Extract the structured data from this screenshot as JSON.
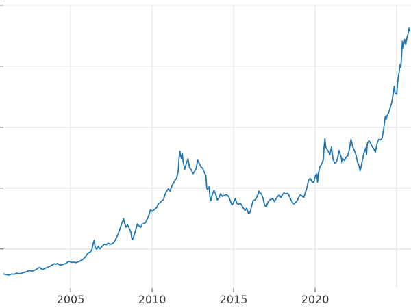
{
  "figure": {
    "background": "#ffffff"
  },
  "chart_data": {
    "type": "line",
    "title": "",
    "xlabel": "",
    "ylabel": "",
    "legend": null,
    "grid": true,
    "line_color": "#1f77b4",
    "line_width": 1.8,
    "grid_color": "#dcdcdc",
    "tick_color": "#555555",
    "tick_label_color": "#3a3a3a",
    "tick_label_font_size": 16,
    "x_tick_labels": [
      "2005",
      "2010",
      "2015",
      "2020"
    ],
    "x_tick_values": [
      2005,
      2010,
      2015,
      2020
    ],
    "x_grid_values": [
      2005,
      2010,
      2015,
      2020,
      2025
    ],
    "y_grid_values": [
      600,
      1400,
      2200,
      3000,
      3800
    ],
    "xlim": [
      2000.67,
      2025.88
    ],
    "ylim": [
      140,
      3780
    ],
    "points": [
      [
        2000.9,
        272
      ],
      [
        2001.0,
        266
      ],
      [
        2001.1,
        262
      ],
      [
        2001.2,
        258
      ],
      [
        2001.3,
        264
      ],
      [
        2001.4,
        272
      ],
      [
        2001.5,
        268
      ],
      [
        2001.6,
        274
      ],
      [
        2001.7,
        283
      ],
      [
        2001.8,
        278
      ],
      [
        2001.9,
        276
      ],
      [
        2002.0,
        282
      ],
      [
        2002.1,
        290
      ],
      [
        2002.2,
        296
      ],
      [
        2002.3,
        302
      ],
      [
        2002.4,
        312
      ],
      [
        2002.5,
        318
      ],
      [
        2002.6,
        310
      ],
      [
        2002.7,
        314
      ],
      [
        2002.8,
        322
      ],
      [
        2002.9,
        332
      ],
      [
        2003.0,
        348
      ],
      [
        2003.1,
        358
      ],
      [
        2003.2,
        340
      ],
      [
        2003.3,
        330
      ],
      [
        2003.4,
        344
      ],
      [
        2003.5,
        352
      ],
      [
        2003.6,
        360
      ],
      [
        2003.7,
        370
      ],
      [
        2003.8,
        382
      ],
      [
        2003.9,
        392
      ],
      [
        2004.0,
        408
      ],
      [
        2004.1,
        400
      ],
      [
        2004.2,
        412
      ],
      [
        2004.3,
        394
      ],
      [
        2004.4,
        388
      ],
      [
        2004.5,
        396
      ],
      [
        2004.6,
        402
      ],
      [
        2004.7,
        410
      ],
      [
        2004.8,
        424
      ],
      [
        2004.9,
        438
      ],
      [
        2005.0,
        428
      ],
      [
        2005.1,
        424
      ],
      [
        2005.2,
        430
      ],
      [
        2005.3,
        420
      ],
      [
        2005.4,
        428
      ],
      [
        2005.5,
        434
      ],
      [
        2005.6,
        444
      ],
      [
        2005.7,
        456
      ],
      [
        2005.8,
        472
      ],
      [
        2005.9,
        494
      ],
      [
        2006.0,
        528
      ],
      [
        2006.1,
        552
      ],
      [
        2006.2,
        558
      ],
      [
        2006.3,
        588
      ],
      [
        2006.4,
        684
      ],
      [
        2006.45,
        716
      ],
      [
        2006.5,
        628
      ],
      [
        2006.6,
        596
      ],
      [
        2006.7,
        632
      ],
      [
        2006.8,
        602
      ],
      [
        2006.9,
        628
      ],
      [
        2007.0,
        650
      ],
      [
        2007.1,
        664
      ],
      [
        2007.2,
        656
      ],
      [
        2007.3,
        678
      ],
      [
        2007.4,
        662
      ],
      [
        2007.5,
        666
      ],
      [
        2007.6,
        674
      ],
      [
        2007.7,
        700
      ],
      [
        2007.8,
        744
      ],
      [
        2007.9,
        788
      ],
      [
        2008.0,
        846
      ],
      [
        2008.1,
        912
      ],
      [
        2008.2,
        968
      ],
      [
        2008.25,
        1002
      ],
      [
        2008.3,
        944
      ],
      [
        2008.4,
        888
      ],
      [
        2008.5,
        916
      ],
      [
        2008.6,
        872
      ],
      [
        2008.7,
        820
      ],
      [
        2008.75,
        748
      ],
      [
        2008.8,
        724
      ],
      [
        2008.9,
        782
      ],
      [
        2009.0,
        856
      ],
      [
        2009.1,
        928
      ],
      [
        2009.2,
        902
      ],
      [
        2009.3,
        884
      ],
      [
        2009.4,
        928
      ],
      [
        2009.5,
        934
      ],
      [
        2009.6,
        948
      ],
      [
        2009.7,
        992
      ],
      [
        2009.8,
        1044
      ],
      [
        2009.9,
        1116
      ],
      [
        2010.0,
        1096
      ],
      [
        2010.1,
        1110
      ],
      [
        2010.2,
        1128
      ],
      [
        2010.3,
        1152
      ],
      [
        2010.4,
        1198
      ],
      [
        2010.5,
        1210
      ],
      [
        2010.6,
        1236
      ],
      [
        2010.7,
        1248
      ],
      [
        2010.8,
        1320
      ],
      [
        2010.9,
        1366
      ],
      [
        2011.0,
        1390
      ],
      [
        2011.1,
        1362
      ],
      [
        2011.2,
        1420
      ],
      [
        2011.3,
        1460
      ],
      [
        2011.4,
        1502
      ],
      [
        2011.5,
        1528
      ],
      [
        2011.6,
        1620
      ],
      [
        2011.65,
        1780
      ],
      [
        2011.7,
        1888
      ],
      [
        2011.75,
        1826
      ],
      [
        2011.8,
        1788
      ],
      [
        2011.85,
        1852
      ],
      [
        2011.9,
        1746
      ],
      [
        2012.0,
        1650
      ],
      [
        2012.1,
        1722
      ],
      [
        2012.2,
        1784
      ],
      [
        2012.3,
        1668
      ],
      [
        2012.4,
        1642
      ],
      [
        2012.5,
        1590
      ],
      [
        2012.6,
        1614
      ],
      [
        2012.7,
        1662
      ],
      [
        2012.8,
        1766
      ],
      [
        2012.9,
        1722
      ],
      [
        2013.0,
        1676
      ],
      [
        2013.1,
        1662
      ],
      [
        2013.2,
        1608
      ],
      [
        2013.3,
        1562
      ],
      [
        2013.35,
        1400
      ],
      [
        2013.4,
        1382
      ],
      [
        2013.5,
        1418
      ],
      [
        2013.55,
        1286
      ],
      [
        2013.6,
        1236
      ],
      [
        2013.7,
        1322
      ],
      [
        2013.8,
        1372
      ],
      [
        2013.9,
        1318
      ],
      [
        2014.0,
        1244
      ],
      [
        2014.1,
        1270
      ],
      [
        2014.2,
        1328
      ],
      [
        2014.3,
        1292
      ],
      [
        2014.4,
        1300
      ],
      [
        2014.5,
        1314
      ],
      [
        2014.6,
        1308
      ],
      [
        2014.7,
        1288
      ],
      [
        2014.8,
        1232
      ],
      [
        2014.9,
        1178
      ],
      [
        2015.0,
        1214
      ],
      [
        2015.1,
        1262
      ],
      [
        2015.2,
        1200
      ],
      [
        2015.3,
        1184
      ],
      [
        2015.4,
        1204
      ],
      [
        2015.5,
        1174
      ],
      [
        2015.6,
        1134
      ],
      [
        2015.7,
        1104
      ],
      [
        2015.8,
        1138
      ],
      [
        2015.9,
        1072
      ],
      [
        2016.0,
        1078
      ],
      [
        2016.1,
        1158
      ],
      [
        2016.2,
        1238
      ],
      [
        2016.3,
        1242
      ],
      [
        2016.4,
        1272
      ],
      [
        2016.5,
        1322
      ],
      [
        2016.55,
        1360
      ],
      [
        2016.6,
        1336
      ],
      [
        2016.7,
        1326
      ],
      [
        2016.8,
        1268
      ],
      [
        2016.9,
        1178
      ],
      [
        2017.0,
        1152
      ],
      [
        2017.1,
        1210
      ],
      [
        2017.2,
        1244
      ],
      [
        2017.3,
        1252
      ],
      [
        2017.4,
        1262
      ],
      [
        2017.5,
        1224
      ],
      [
        2017.6,
        1260
      ],
      [
        2017.7,
        1292
      ],
      [
        2017.8,
        1308
      ],
      [
        2017.9,
        1276
      ],
      [
        2018.0,
        1318
      ],
      [
        2018.1,
        1336
      ],
      [
        2018.2,
        1324
      ],
      [
        2018.3,
        1332
      ],
      [
        2018.4,
        1302
      ],
      [
        2018.5,
        1254
      ],
      [
        2018.6,
        1212
      ],
      [
        2018.7,
        1192
      ],
      [
        2018.8,
        1214
      ],
      [
        2018.9,
        1236
      ],
      [
        2019.0,
        1284
      ],
      [
        2019.1,
        1312
      ],
      [
        2019.2,
        1294
      ],
      [
        2019.3,
        1276
      ],
      [
        2019.4,
        1342
      ],
      [
        2019.5,
        1410
      ],
      [
        2019.6,
        1506
      ],
      [
        2019.7,
        1528
      ],
      [
        2019.8,
        1488
      ],
      [
        2019.9,
        1472
      ],
      [
        2020.0,
        1552
      ],
      [
        2020.1,
        1586
      ],
      [
        2020.15,
        1476
      ],
      [
        2020.2,
        1592
      ],
      [
        2020.3,
        1684
      ],
      [
        2020.4,
        1716
      ],
      [
        2020.5,
        1772
      ],
      [
        2020.55,
        1942
      ],
      [
        2020.6,
        2048
      ],
      [
        2020.65,
        1938
      ],
      [
        2020.7,
        1922
      ],
      [
        2020.8,
        1884
      ],
      [
        2020.9,
        1838
      ],
      [
        2021.0,
        1942
      ],
      [
        2021.05,
        1852
      ],
      [
        2021.1,
        1778
      ],
      [
        2021.2,
        1726
      ],
      [
        2021.3,
        1742
      ],
      [
        2021.4,
        1816
      ],
      [
        2021.45,
        1896
      ],
      [
        2021.5,
        1862
      ],
      [
        2021.6,
        1808
      ],
      [
        2021.65,
        1728
      ],
      [
        2021.7,
        1786
      ],
      [
        2021.8,
        1762
      ],
      [
        2021.9,
        1806
      ],
      [
        2022.0,
        1828
      ],
      [
        2022.1,
        1908
      ],
      [
        2022.2,
        2042
      ],
      [
        2022.3,
        1948
      ],
      [
        2022.4,
        1896
      ],
      [
        2022.5,
        1838
      ],
      [
        2022.6,
        1742
      ],
      [
        2022.7,
        1688
      ],
      [
        2022.75,
        1628
      ],
      [
        2022.8,
        1662
      ],
      [
        2022.9,
        1772
      ],
      [
        2023.0,
        1866
      ],
      [
        2023.1,
        1928
      ],
      [
        2023.15,
        1838
      ],
      [
        2023.2,
        1982
      ],
      [
        2023.3,
        2024
      ],
      [
        2023.4,
        1986
      ],
      [
        2023.5,
        1942
      ],
      [
        2023.6,
        1916
      ],
      [
        2023.7,
        1872
      ],
      [
        2023.75,
        1932
      ],
      [
        2023.8,
        1988
      ],
      [
        2023.9,
        2042
      ],
      [
        2024.0,
        2034
      ],
      [
        2024.1,
        2052
      ],
      [
        2024.2,
        2168
      ],
      [
        2024.3,
        2342
      ],
      [
        2024.35,
        2298
      ],
      [
        2024.4,
        2344
      ],
      [
        2024.5,
        2388
      ],
      [
        2024.6,
        2452
      ],
      [
        2024.7,
        2524
      ],
      [
        2024.8,
        2656
      ],
      [
        2024.85,
        2738
      ],
      [
        2024.9,
        2648
      ],
      [
        2025.0,
        2634
      ],
      [
        2025.05,
        2756
      ],
      [
        2025.1,
        2862
      ],
      [
        2025.15,
        2918
      ],
      [
        2025.2,
        3022
      ],
      [
        2025.25,
        2984
      ],
      [
        2025.3,
        3122
      ],
      [
        2025.35,
        3328
      ],
      [
        2025.4,
        3228
      ],
      [
        2025.45,
        3312
      ],
      [
        2025.5,
        3352
      ],
      [
        2025.55,
        3286
      ],
      [
        2025.6,
        3338
      ],
      [
        2025.65,
        3392
      ],
      [
        2025.7,
        3428
      ],
      [
        2025.75,
        3500
      ],
      [
        2025.8,
        3460
      ]
    ]
  }
}
